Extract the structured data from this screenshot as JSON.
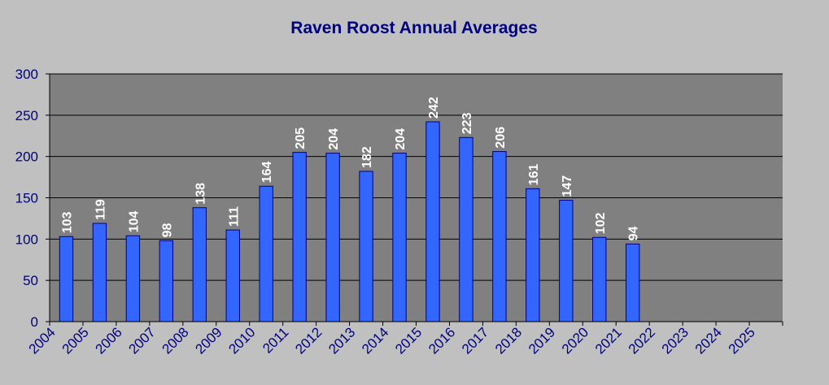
{
  "chart_data": {
    "type": "bar",
    "title": "Raven Roost Annual Averages",
    "xlabel": "",
    "ylabel": "",
    "ylim": [
      0,
      300
    ],
    "yticks": [
      0,
      50,
      100,
      150,
      200,
      250,
      300
    ],
    "categories": [
      "2004",
      "2005",
      "2006",
      "2007",
      "2008",
      "2009",
      "2010",
      "2011",
      "2012",
      "2013",
      "2014",
      "2015",
      "2016",
      "2017",
      "2018",
      "2019",
      "2020",
      "2021",
      "2022",
      "2023",
      "2024",
      "2025"
    ],
    "values": [
      103,
      119,
      104,
      98,
      138,
      111,
      164,
      205,
      204,
      182,
      204,
      242,
      223,
      206,
      161,
      147,
      102,
      94,
      null,
      null,
      null,
      null
    ],
    "grid": true,
    "legend": "none",
    "colors": {
      "background": "#c0c0c0",
      "plot_area": "#808080",
      "bar_fill": "#3366ff",
      "bar_stroke": "#000080",
      "text": "#000080",
      "data_label": "#ffffff"
    }
  }
}
